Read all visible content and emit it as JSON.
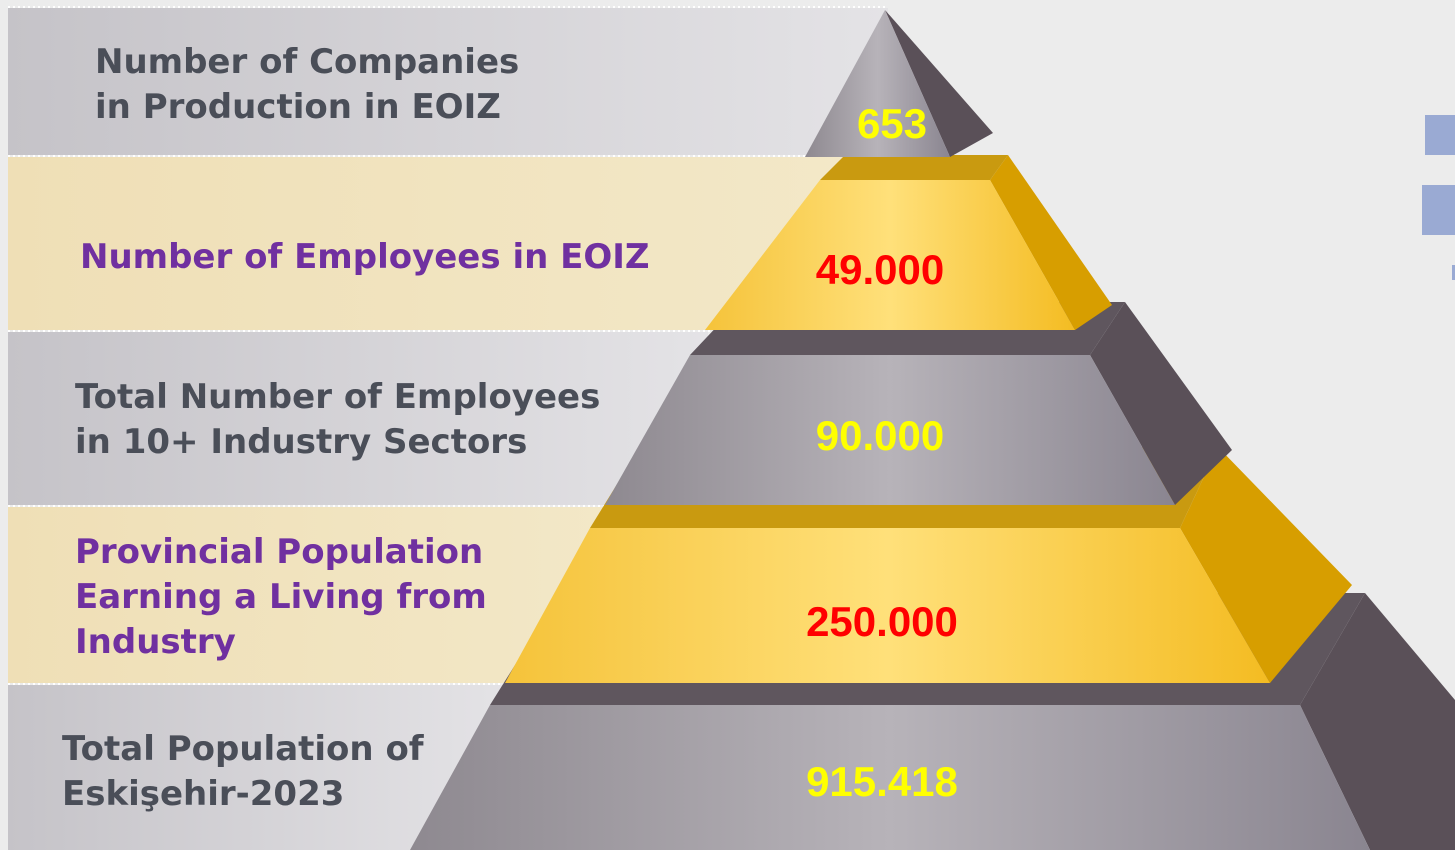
{
  "levels": [
    {
      "label": [
        "Number of Companies",
        "in Production in EOIZ"
      ],
      "value": "653"
    },
    {
      "label": [
        "Number of Employees in EOIZ"
      ],
      "value": "49.000"
    },
    {
      "label": [
        "Total Number of Employees",
        "in 10+ Industry Sectors"
      ],
      "value": "90.000"
    },
    {
      "label": [
        "Provincial Population",
        "Earning a Living from",
        "Industry"
      ],
      "value": "250.000"
    },
    {
      "label": [
        "Total Population of",
        "Eskişehir-2023"
      ],
      "value": "915.418"
    }
  ]
}
